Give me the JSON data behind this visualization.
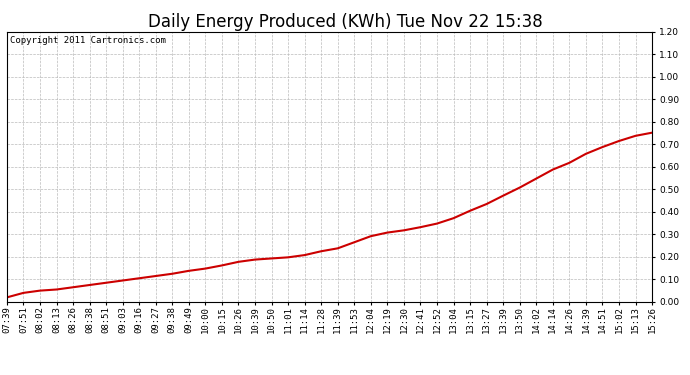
{
  "title": "Daily Energy Produced (KWh) Tue Nov 22 15:38",
  "copyright_text": "Copyright 2011 Cartronics.com",
  "line_color": "#cc0000",
  "background_color": "#ffffff",
  "plot_bg_color": "#ffffff",
  "grid_color": "#bbbbbb",
  "ylim": [
    0.0,
    1.2
  ],
  "yticks": [
    0.0,
    0.1,
    0.2,
    0.3,
    0.4,
    0.5,
    0.6,
    0.7,
    0.8,
    0.9,
    1.0,
    1.1,
    1.2
  ],
  "x_labels": [
    "07:39",
    "07:51",
    "08:02",
    "08:13",
    "08:26",
    "08:38",
    "08:51",
    "09:03",
    "09:16",
    "09:27",
    "09:38",
    "09:49",
    "10:00",
    "10:15",
    "10:26",
    "10:39",
    "10:50",
    "11:01",
    "11:14",
    "11:28",
    "11:39",
    "11:53",
    "12:04",
    "12:19",
    "12:30",
    "12:41",
    "12:52",
    "13:04",
    "13:15",
    "13:27",
    "13:39",
    "13:50",
    "14:02",
    "14:14",
    "14:26",
    "14:39",
    "14:51",
    "15:02",
    "15:13",
    "15:26"
  ],
  "y_values": [
    0.02,
    0.04,
    0.05,
    0.055,
    0.065,
    0.075,
    0.085,
    0.095,
    0.105,
    0.115,
    0.125,
    0.138,
    0.148,
    0.162,
    0.178,
    0.188,
    0.193,
    0.198,
    0.208,
    0.225,
    0.238,
    0.265,
    0.292,
    0.308,
    0.318,
    0.332,
    0.348,
    0.372,
    0.405,
    0.435,
    0.472,
    0.508,
    0.548,
    0.588,
    0.618,
    0.658,
    0.688,
    0.715,
    0.738,
    0.752
  ],
  "title_fontsize": 12,
  "tick_fontsize": 6.5,
  "copyright_fontsize": 6.5,
  "line_width": 1.5
}
